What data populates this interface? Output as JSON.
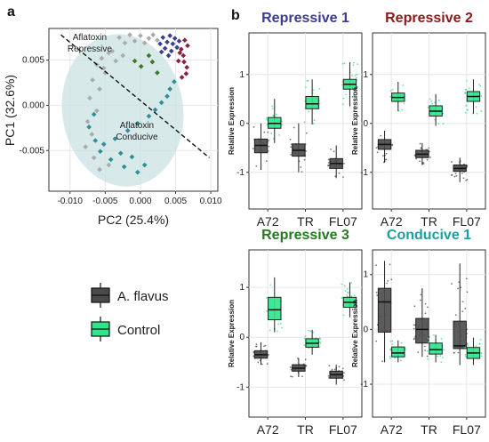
{
  "panel_labels": {
    "a": "a",
    "b": "b"
  },
  "colors": {
    "aflavus": "#4a4a4a",
    "control": "#2ee58a",
    "repressive1": "#3b3b96",
    "repressive2": "#8b1a1a",
    "repressive3": "#237a1e",
    "conducive1": "#1f9ea0",
    "pca_grey": "#a9acae",
    "pca_ellipse": "#c9e1e1",
    "pca_purple": "#3d3f8f",
    "pca_red": "#8e1f3d",
    "pca_green": "#3b7a25",
    "pca_teal": "#2f8f99",
    "grid": "#e6e6e6"
  },
  "chart_data": [
    {
      "type": "scatter",
      "id": "pca",
      "xlabel": "PC2 (25.4%)",
      "ylabel": "PC1 (32.6%)",
      "xlim": [
        -0.013,
        0.011
      ],
      "ylim": [
        -0.0095,
        0.0085
      ],
      "xticks": [
        -0.01,
        -0.005,
        0.0,
        0.005,
        0.01
      ],
      "xtick_labels": [
        "-0.010",
        "-0.005",
        "0.000",
        "0.005",
        "0.010"
      ],
      "yticks": [
        -0.005,
        0.0,
        0.005
      ],
      "ytick_labels": [
        "-0.005",
        "0.000",
        "0.005"
      ],
      "annotations": [
        {
          "lines": [
            "Aflatoxin",
            "Repressive"
          ],
          "x": -0.0072,
          "y": 0.0072
        },
        {
          "lines": [
            "Aflatoxin",
            "Conducive"
          ],
          "x": -0.0005,
          "y": -0.0025
        }
      ],
      "divider": {
        "x1": -0.0113,
        "y1": 0.0078,
        "x2": 0.0098,
        "y2": -0.0058
      },
      "grid": true,
      "series": [
        {
          "group": "grey",
          "points": [
            [
              -0.003,
              0.0075
            ],
            [
              -0.0015,
              0.0078
            ],
            [
              0.0,
              0.0077
            ],
            [
              0.0012,
              0.0074
            ],
            [
              -0.0022,
              0.0069
            ],
            [
              -0.0008,
              0.0071
            ],
            [
              0.0006,
              0.0069
            ],
            [
              -0.004,
              0.006
            ],
            [
              -0.0055,
              0.0052
            ],
            [
              -0.0062,
              0.0045
            ],
            [
              -0.0045,
              0.0058
            ],
            [
              -0.0035,
              0.0049
            ],
            [
              -0.0025,
              0.0055
            ],
            [
              -0.005,
              0.0036
            ],
            [
              -0.0068,
              0.0028
            ],
            [
              -0.0058,
              0.0018
            ],
            [
              -0.0072,
              0.0008
            ],
            [
              -0.0062,
              -0.0006
            ],
            [
              -0.0075,
              -0.0018
            ],
            [
              -0.0069,
              -0.0032
            ],
            [
              -0.0078,
              -0.0046
            ],
            [
              -0.0066,
              -0.0058
            ],
            [
              -0.0058,
              -0.0071
            ],
            [
              -0.0045,
              -0.0066
            ],
            [
              -0.0052,
              0.0041
            ],
            [
              0.0018,
              0.0078
            ],
            [
              0.0024,
              0.0072
            ]
          ]
        },
        {
          "group": "purple",
          "points": [
            [
              0.0032,
              0.0075
            ],
            [
              0.0038,
              0.007
            ],
            [
              0.0042,
              0.0077
            ],
            [
              0.0046,
              0.0068
            ],
            [
              0.0049,
              0.0074
            ],
            [
              0.0052,
              0.0064
            ],
            [
              0.0028,
              0.0068
            ],
            [
              0.0035,
              0.0063
            ],
            [
              0.0044,
              0.006
            ],
            [
              0.0055,
              0.0071
            ],
            [
              0.004,
              0.0055
            ],
            [
              0.003,
              0.0059
            ]
          ]
        },
        {
          "group": "red",
          "points": [
            [
              0.0058,
              0.0062
            ],
            [
              0.0061,
              0.0055
            ],
            [
              0.0062,
              0.0048
            ],
            [
              0.0066,
              0.0042
            ],
            [
              0.0065,
              0.0035
            ],
            [
              0.0059,
              0.0031
            ],
            [
              0.0054,
              0.0049
            ],
            [
              0.0056,
              0.0058
            ],
            [
              0.0067,
              0.0066
            ],
            [
              0.0063,
              0.0072
            ]
          ]
        },
        {
          "group": "green",
          "points": [
            [
              0.0012,
              0.0055
            ],
            [
              0.0001,
              0.0043
            ],
            [
              0.0024,
              0.0036
            ],
            [
              -0.0008,
              0.0049
            ],
            [
              0.0017,
              0.0048
            ]
          ]
        },
        {
          "group": "teal",
          "points": [
            [
              0.0048,
              0.0026
            ],
            [
              0.0042,
              0.0018
            ],
            [
              0.0038,
              0.001
            ],
            [
              0.003,
              0.0003
            ],
            [
              0.0021,
              -0.0005
            ],
            [
              0.0012,
              -0.0012
            ],
            [
              -0.0004,
              -0.002
            ],
            [
              -0.0018,
              -0.0028
            ],
            [
              -0.0036,
              -0.0037
            ],
            [
              -0.0052,
              -0.0043
            ],
            [
              -0.0028,
              -0.0053
            ],
            [
              -0.0042,
              -0.006
            ],
            [
              -0.0012,
              -0.0057
            ],
            [
              -0.0023,
              -0.0068
            ],
            [
              -0.0004,
              -0.0074
            ],
            [
              0.0006,
              -0.0066
            ],
            [
              -0.0064,
              -0.0039
            ],
            [
              -0.0073,
              -0.0024
            ],
            [
              -0.0066,
              -0.001
            ],
            [
              -0.0057,
              -0.0051
            ]
          ]
        }
      ]
    },
    {
      "type": "box",
      "id": "repressive1",
      "title": "Repressive 1",
      "ylabel": "Relative Expression",
      "categories": [
        "A72",
        "TR",
        "FL07"
      ],
      "yticks": [
        -1,
        0,
        1
      ],
      "ylim": [
        -1.75,
        1.85
      ],
      "series": [
        {
          "name": "A. flavus",
          "boxes": [
            [
              -0.95,
              -0.6,
              -0.45,
              -0.32,
              0.0
            ],
            [
              -1.0,
              -0.67,
              -0.55,
              -0.42,
              0.0
            ],
            [
              -1.12,
              -0.92,
              -0.82,
              -0.72,
              -0.45
            ]
          ]
        },
        {
          "name": "Control",
          "boxes": [
            [
              -0.4,
              -0.1,
              0.0,
              0.12,
              0.5
            ],
            [
              -0.02,
              0.3,
              0.4,
              0.55,
              0.9
            ],
            [
              0.35,
              0.7,
              0.8,
              0.9,
              1.25
            ]
          ]
        }
      ]
    },
    {
      "type": "box",
      "id": "repressive2",
      "title": "Repressive 2",
      "ylabel": "Relative Expression",
      "categories": [
        "A72",
        "TR",
        "FL07"
      ],
      "yticks": [
        -1,
        0,
        1
      ],
      "ylim": [
        -1.75,
        1.85
      ],
      "series": [
        {
          "name": "A. flavus",
          "boxes": [
            [
              -0.8,
              -0.53,
              -0.43,
              -0.33,
              -0.15
            ],
            [
              -0.85,
              -0.7,
              -0.63,
              -0.55,
              -0.4
            ],
            [
              -1.2,
              -0.98,
              -0.92,
              -0.85,
              -0.7
            ]
          ]
        },
        {
          "name": "Control",
          "boxes": [
            [
              0.25,
              0.45,
              0.53,
              0.62,
              0.85
            ],
            [
              -0.05,
              0.15,
              0.25,
              0.36,
              0.6
            ],
            [
              0.2,
              0.45,
              0.55,
              0.65,
              0.9
            ]
          ]
        }
      ]
    },
    {
      "type": "box",
      "id": "repressive3",
      "title": "Repressive 3",
      "ylabel": "Relative Expression",
      "categories": [
        "A72",
        "TR",
        "FL07"
      ],
      "yticks": [
        -1,
        0,
        1
      ],
      "ylim": [
        -1.6,
        1.75
      ],
      "series": [
        {
          "name": "A. flavus",
          "boxes": [
            [
              -0.55,
              -0.42,
              -0.35,
              -0.27,
              -0.1
            ],
            [
              -0.8,
              -0.68,
              -0.62,
              -0.55,
              -0.42
            ],
            [
              -0.95,
              -0.82,
              -0.75,
              -0.68,
              -0.55
            ]
          ]
        },
        {
          "name": "Control",
          "boxes": [
            [
              0.1,
              0.35,
              0.55,
              0.8,
              1.2
            ],
            [
              -0.35,
              -0.2,
              -0.12,
              -0.03,
              0.15
            ],
            [
              0.4,
              0.6,
              0.7,
              0.8,
              1.1
            ]
          ]
        }
      ]
    },
    {
      "type": "box",
      "id": "conducive1",
      "title": "Conducive 1",
      "ylabel": "Relative Expression",
      "categories": [
        "A72",
        "TR",
        "FL07"
      ],
      "yticks": [
        -1,
        0,
        1
      ],
      "ylim": [
        -1.6,
        1.45
      ],
      "series": [
        {
          "name": "A. flavus",
          "boxes": [
            [
              -0.6,
              -0.05,
              0.5,
              0.75,
              1.25
            ],
            [
              -0.5,
              -0.25,
              0.0,
              0.2,
              0.75
            ],
            [
              -0.65,
              -0.35,
              -0.3,
              0.15,
              1.2
            ]
          ]
        },
        {
          "name": "Control",
          "boxes": [
            [
              -0.6,
              -0.5,
              -0.43,
              -0.32,
              -0.2
            ],
            [
              -0.6,
              -0.45,
              -0.37,
              -0.25,
              -0.1
            ],
            [
              -0.65,
              -0.53,
              -0.43,
              -0.33,
              -0.15
            ]
          ]
        }
      ]
    }
  ],
  "legend": {
    "items": [
      "A. flavus",
      "Control"
    ]
  }
}
